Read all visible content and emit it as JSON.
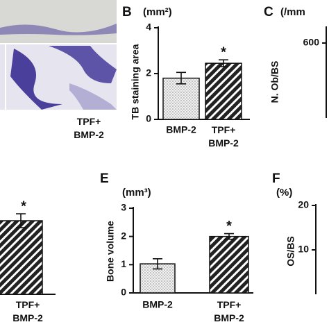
{
  "image_panel": {
    "caption": "TPF+ BMP-2"
  },
  "chart_data": [
    {
      "type": "bar",
      "panel": "B",
      "unit": "(mm²)",
      "ylabel": "TB staining area",
      "categories": [
        "BMP-2",
        "TPF+ BMP-2"
      ],
      "values": [
        1.8,
        2.45
      ],
      "errors": [
        0.25,
        0.15
      ],
      "annotations": [
        null,
        "*"
      ],
      "patterns": [
        "dots",
        "hatch"
      ],
      "ylim": [
        0,
        4
      ],
      "yticks": [
        0,
        2,
        4
      ]
    },
    {
      "type": "axis-only",
      "panel": "C",
      "unit": "(/mm",
      "ylabel": "N. Ob/BS",
      "yticks": [
        600
      ]
    },
    {
      "type": "bar-partial",
      "categories": [
        "TPF+ BMP-2"
      ],
      "annotations": [
        "*"
      ],
      "patterns": [
        "hatch"
      ]
    },
    {
      "type": "bar",
      "panel": "E",
      "unit": "(mm³)",
      "ylabel": "Bone volume",
      "categories": [
        "BMP-2",
        "TPF+ BMP-2"
      ],
      "values": [
        1.03,
        2.0
      ],
      "errors": [
        0.18,
        0.1
      ],
      "annotations": [
        null,
        "*"
      ],
      "patterns": [
        "dots",
        "hatch"
      ],
      "ylim": [
        0,
        3
      ],
      "yticks": [
        0,
        1,
        2,
        3
      ]
    },
    {
      "type": "axis-only",
      "panel": "F",
      "unit": "(%)",
      "ylabel": "OS/BS",
      "ylim": [
        0,
        20
      ],
      "yticks": [
        10,
        20
      ]
    }
  ]
}
